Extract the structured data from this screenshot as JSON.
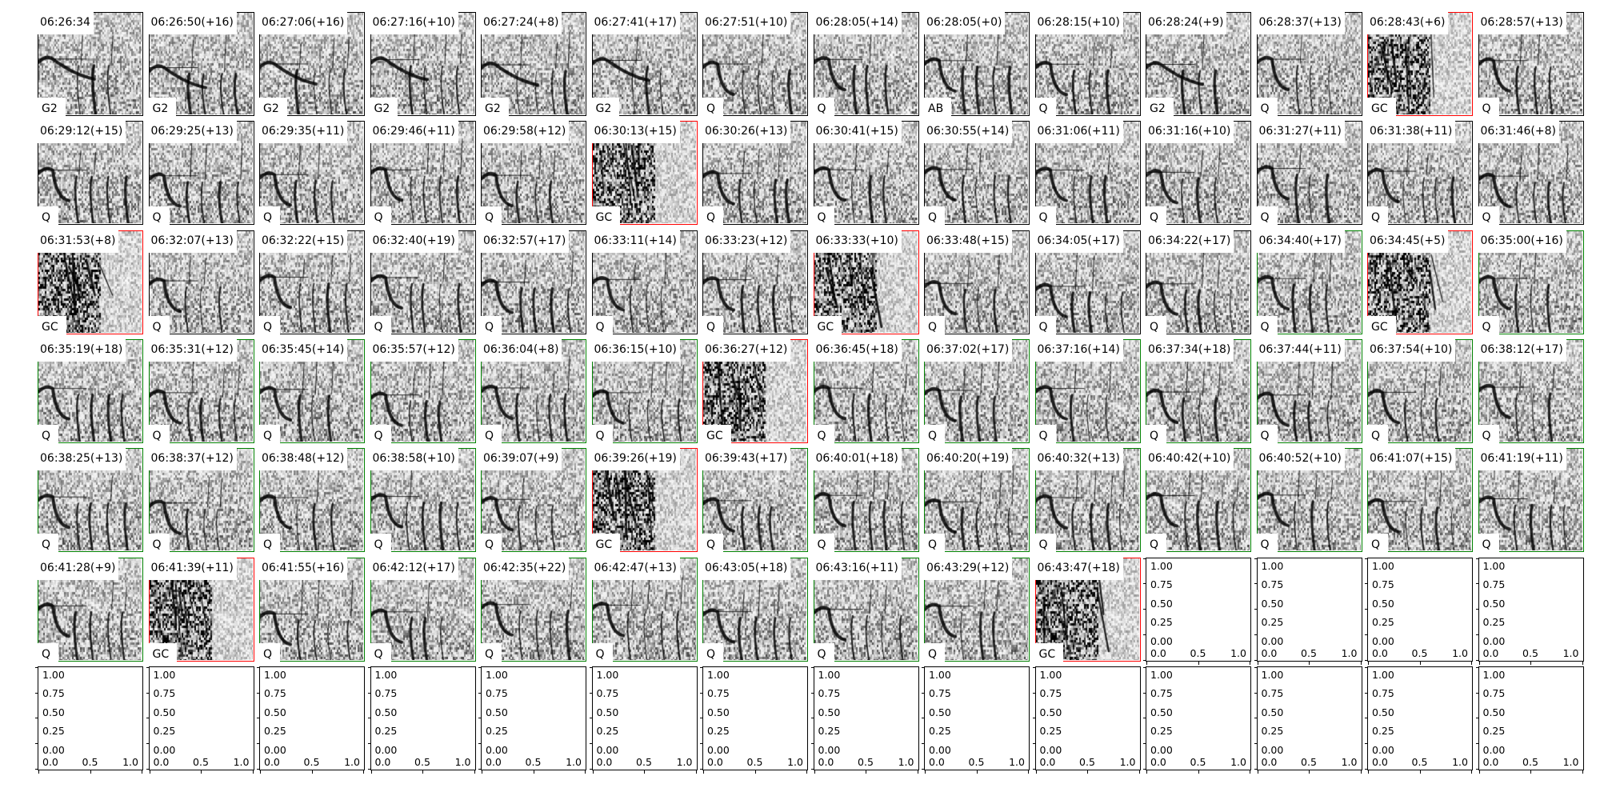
{
  "frame_colors": {
    "black": "#000000",
    "green": "#008000",
    "red": "#ff0000"
  },
  "panels": [
    {
      "time": "06:26:34",
      "label": "G2",
      "frame": "black"
    },
    {
      "time": "06:26:50(+16)",
      "label": "G2",
      "frame": "black"
    },
    {
      "time": "06:27:06(+16)",
      "label": "G2",
      "frame": "black"
    },
    {
      "time": "06:27:16(+10)",
      "label": "G2",
      "frame": "black"
    },
    {
      "time": "06:27:24(+8)",
      "label": "G2",
      "frame": "black"
    },
    {
      "time": "06:27:41(+17)",
      "label": "G2",
      "frame": "black"
    },
    {
      "time": "06:27:51(+10)",
      "label": "Q",
      "frame": "black"
    },
    {
      "time": "06:28:05(+14)",
      "label": "Q",
      "frame": "black"
    },
    {
      "time": "06:28:05(+0)",
      "label": "AB",
      "frame": "black"
    },
    {
      "time": "06:28:15(+10)",
      "label": "Q",
      "frame": "black"
    },
    {
      "time": "06:28:24(+9)",
      "label": "G2",
      "frame": "black"
    },
    {
      "time": "06:28:37(+13)",
      "label": "Q",
      "frame": "black"
    },
    {
      "time": "06:28:43(+6)",
      "label": "GC",
      "frame": "red"
    },
    {
      "time": "06:28:57(+13)",
      "label": "Q",
      "frame": "black"
    },
    {
      "time": "06:29:12(+15)",
      "label": "Q",
      "frame": "black"
    },
    {
      "time": "06:29:25(+13)",
      "label": "Q",
      "frame": "black"
    },
    {
      "time": "06:29:35(+11)",
      "label": "Q",
      "frame": "black"
    },
    {
      "time": "06:29:46(+11)",
      "label": "Q",
      "frame": "black"
    },
    {
      "time": "06:29:58(+12)",
      "label": "Q",
      "frame": "black"
    },
    {
      "time": "06:30:13(+15)",
      "label": "GC",
      "frame": "red"
    },
    {
      "time": "06:30:26(+13)",
      "label": "Q",
      "frame": "black"
    },
    {
      "time": "06:30:41(+15)",
      "label": "Q",
      "frame": "black"
    },
    {
      "time": "06:30:55(+14)",
      "label": "Q",
      "frame": "black"
    },
    {
      "time": "06:31:06(+11)",
      "label": "Q",
      "frame": "black"
    },
    {
      "time": "06:31:16(+10)",
      "label": "Q",
      "frame": "black"
    },
    {
      "time": "06:31:27(+11)",
      "label": "Q",
      "frame": "black"
    },
    {
      "time": "06:31:38(+11)",
      "label": "Q",
      "frame": "black"
    },
    {
      "time": "06:31:46(+8)",
      "label": "Q",
      "frame": "black"
    },
    {
      "time": "06:31:53(+8)",
      "label": "GC",
      "frame": "red"
    },
    {
      "time": "06:32:07(+13)",
      "label": "Q",
      "frame": "black"
    },
    {
      "time": "06:32:22(+15)",
      "label": "Q",
      "frame": "black"
    },
    {
      "time": "06:32:40(+19)",
      "label": "Q",
      "frame": "black"
    },
    {
      "time": "06:32:57(+17)",
      "label": "Q",
      "frame": "black"
    },
    {
      "time": "06:33:11(+14)",
      "label": "Q",
      "frame": "black"
    },
    {
      "time": "06:33:23(+12)",
      "label": "Q",
      "frame": "black"
    },
    {
      "time": "06:33:33(+10)",
      "label": "GC",
      "frame": "red"
    },
    {
      "time": "06:33:48(+15)",
      "label": "Q",
      "frame": "black"
    },
    {
      "time": "06:34:05(+17)",
      "label": "Q",
      "frame": "black"
    },
    {
      "time": "06:34:22(+17)",
      "label": "Q",
      "frame": "black"
    },
    {
      "time": "06:34:40(+17)",
      "label": "Q",
      "frame": "green"
    },
    {
      "time": "06:34:45(+5)",
      "label": "GC",
      "frame": "red"
    },
    {
      "time": "06:35:00(+16)",
      "label": "Q",
      "frame": "green"
    },
    {
      "time": "06:35:19(+18)",
      "label": "Q",
      "frame": "green"
    },
    {
      "time": "06:35:31(+12)",
      "label": "Q",
      "frame": "green"
    },
    {
      "time": "06:35:45(+14)",
      "label": "Q",
      "frame": "green"
    },
    {
      "time": "06:35:57(+12)",
      "label": "Q",
      "frame": "green"
    },
    {
      "time": "06:36:04(+8)",
      "label": "Q",
      "frame": "green"
    },
    {
      "time": "06:36:15(+10)",
      "label": "Q",
      "frame": "green"
    },
    {
      "time": "06:36:27(+12)",
      "label": "GC",
      "frame": "red"
    },
    {
      "time": "06:36:45(+18)",
      "label": "Q",
      "frame": "green"
    },
    {
      "time": "06:37:02(+17)",
      "label": "Q",
      "frame": "green"
    },
    {
      "time": "06:37:16(+14)",
      "label": "Q",
      "frame": "green"
    },
    {
      "time": "06:37:34(+18)",
      "label": "Q",
      "frame": "green"
    },
    {
      "time": "06:37:44(+11)",
      "label": "Q",
      "frame": "green"
    },
    {
      "time": "06:37:54(+10)",
      "label": "Q",
      "frame": "green"
    },
    {
      "time": "06:38:12(+17)",
      "label": "Q",
      "frame": "green"
    },
    {
      "time": "06:38:25(+13)",
      "label": "Q",
      "frame": "green"
    },
    {
      "time": "06:38:37(+12)",
      "label": "Q",
      "frame": "green"
    },
    {
      "time": "06:38:48(+12)",
      "label": "Q",
      "frame": "green"
    },
    {
      "time": "06:38:58(+10)",
      "label": "Q",
      "frame": "green"
    },
    {
      "time": "06:39:07(+9)",
      "label": "Q",
      "frame": "green"
    },
    {
      "time": "06:39:26(+19)",
      "label": "GC",
      "frame": "red"
    },
    {
      "time": "06:39:43(+17)",
      "label": "Q",
      "frame": "green"
    },
    {
      "time": "06:40:01(+18)",
      "label": "Q",
      "frame": "green"
    },
    {
      "time": "06:40:20(+19)",
      "label": "Q",
      "frame": "green"
    },
    {
      "time": "06:40:32(+13)",
      "label": "Q",
      "frame": "green"
    },
    {
      "time": "06:40:42(+10)",
      "label": "Q",
      "frame": "green"
    },
    {
      "time": "06:40:52(+10)",
      "label": "Q",
      "frame": "green"
    },
    {
      "time": "06:41:07(+15)",
      "label": "Q",
      "frame": "green"
    },
    {
      "time": "06:41:19(+11)",
      "label": "Q",
      "frame": "green"
    },
    {
      "time": "06:41:28(+9)",
      "label": "Q",
      "frame": "green"
    },
    {
      "time": "06:41:39(+11)",
      "label": "GC",
      "frame": "red"
    },
    {
      "time": "06:41:55(+16)",
      "label": "Q",
      "frame": "green"
    },
    {
      "time": "06:42:12(+17)",
      "label": "Q",
      "frame": "green"
    },
    {
      "time": "06:42:35(+22)",
      "label": "Q",
      "frame": "green"
    },
    {
      "time": "06:42:47(+13)",
      "label": "Q",
      "frame": "green"
    },
    {
      "time": "06:43:05(+18)",
      "label": "Q",
      "frame": "green"
    },
    {
      "time": "06:43:16(+11)",
      "label": "Q",
      "frame": "green"
    },
    {
      "time": "06:43:29(+12)",
      "label": "Q",
      "frame": "green"
    },
    {
      "time": "06:43:47(+18)",
      "label": "GC",
      "frame": "red"
    }
  ],
  "empty_axes": {
    "count": 18,
    "y_ticks": [
      "0.00",
      "0.25",
      "0.50",
      "0.75",
      "1.00"
    ],
    "x_ticks": [
      "0.0",
      "0.5",
      "1.0"
    ],
    "xlim": [
      0,
      1
    ],
    "ylim": [
      0,
      1
    ]
  },
  "chart_data": {
    "type": "heatmap",
    "layout": "grid of 14 columns x 7 rows of spectrogram thumbnails",
    "colormap": "grayscale (white to black)",
    "axes_visible": false,
    "unused_axes": {
      "count": 18,
      "xlim": [
        0,
        1
      ],
      "ylim": [
        0,
        1
      ]
    }
  }
}
